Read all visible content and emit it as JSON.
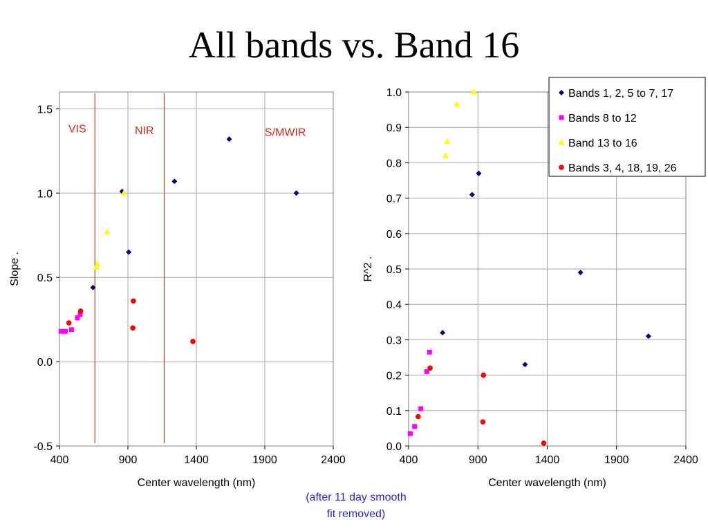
{
  "slide": {
    "title": "All bands vs. Band 16",
    "footnote_line1": "(after 11 day smooth",
    "footnote_line2": "fit removed)"
  },
  "chart_data": [
    {
      "type": "scatter",
      "xlabel": "Center wavelength (nm)",
      "ylabel": "Slope .",
      "xlim": [
        400,
        2400
      ],
      "ylim": [
        -0.5,
        1.6
      ],
      "xticks": [
        "400",
        "900",
        "1400",
        "1900",
        "2400"
      ],
      "xtick_values": [
        400,
        900,
        1400,
        1900,
        2400
      ],
      "yticks": [
        "-0.5",
        "0.0",
        "0.5",
        "1.0",
        "1.5"
      ],
      "ytick_values": [
        -0.5,
        0.0,
        0.5,
        1.0,
        1.5
      ],
      "grid": true,
      "region_lines": [
        659,
        1165
      ],
      "region_labels": [
        {
          "text": "VIS",
          "x": 530,
          "y": 1.36
        },
        {
          "text": "NIR",
          "x": 1020,
          "y": 1.35
        },
        {
          "text": "S/MWIR",
          "x": 2050,
          "y": 1.34
        }
      ],
      "series": [
        {
          "marker": "diamond",
          "color": "#000080",
          "points": [
            [
              645,
              0.44
            ],
            [
              858,
              1.01
            ],
            [
              906,
              0.65
            ],
            [
              1240,
              1.07
            ],
            [
              1640,
              1.32
            ],
            [
              2130,
              1.0
            ]
          ]
        },
        {
          "marker": "square",
          "color": "#ff00ff",
          "points": [
            [
              412,
              0.18
            ],
            [
              443,
              0.18
            ],
            [
              488,
              0.19
            ],
            [
              531,
              0.26
            ],
            [
              551,
              0.28
            ]
          ]
        },
        {
          "marker": "triangle",
          "color": "#ffff00",
          "points": [
            [
              667,
              0.56
            ],
            [
              678,
              0.58
            ],
            [
              748,
              0.77
            ],
            [
              870,
              1.0
            ]
          ]
        },
        {
          "marker": "circle",
          "color": "#ff0000",
          "points": [
            [
              469,
              0.23
            ],
            [
              555,
              0.3
            ],
            [
              936,
              0.2
            ],
            [
              940,
              0.36
            ],
            [
              1375,
              0.12
            ]
          ]
        }
      ]
    },
    {
      "type": "scatter",
      "xlabel": "Center wavelength (nm)",
      "ylabel": "R^2 .",
      "xlim": [
        400,
        2400
      ],
      "ylim": [
        0.0,
        1.0
      ],
      "xticks": [
        "400",
        "900",
        "1400",
        "1900",
        "2400"
      ],
      "xtick_values": [
        400,
        900,
        1400,
        1900,
        2400
      ],
      "yticks": [
        "0.0",
        "0.1",
        "0.2",
        "0.3",
        "0.4",
        "0.5",
        "0.6",
        "0.7",
        "0.8",
        "0.9",
        "1.0"
      ],
      "ytick_values": [
        0.0,
        0.1,
        0.2,
        0.3,
        0.4,
        0.5,
        0.6,
        0.7,
        0.8,
        0.9,
        1.0
      ],
      "grid": true,
      "legend_position": "top-right",
      "series": [
        {
          "name": "Bands 1, 2, 5 to 7, 17",
          "marker": "diamond",
          "color": "#000080",
          "points": [
            [
              645,
              0.32
            ],
            [
              858,
              0.71
            ],
            [
              906,
              0.77
            ],
            [
              1240,
              0.23
            ],
            [
              1640,
              0.49
            ],
            [
              2130,
              0.31
            ]
          ]
        },
        {
          "name": "Bands 8 to 12",
          "marker": "square",
          "color": "#ff00ff",
          "points": [
            [
              412,
              0.035
            ],
            [
              443,
              0.055
            ],
            [
              488,
              0.105
            ],
            [
              531,
              0.21
            ],
            [
              551,
              0.265
            ]
          ]
        },
        {
          "name": "Band 13 to 16",
          "marker": "triangle",
          "color": "#ffff00",
          "points": [
            [
              667,
              0.82
            ],
            [
              678,
              0.86
            ],
            [
              748,
              0.965
            ],
            [
              870,
              1.0
            ]
          ]
        },
        {
          "name": "Bands 3, 4, 18, 19, 26",
          "marker": "circle",
          "color": "#ff0000",
          "points": [
            [
              469,
              0.083
            ],
            [
              555,
              0.22
            ],
            [
              936,
              0.068
            ],
            [
              940,
              0.2
            ],
            [
              1375,
              0.008
            ]
          ]
        }
      ]
    }
  ]
}
